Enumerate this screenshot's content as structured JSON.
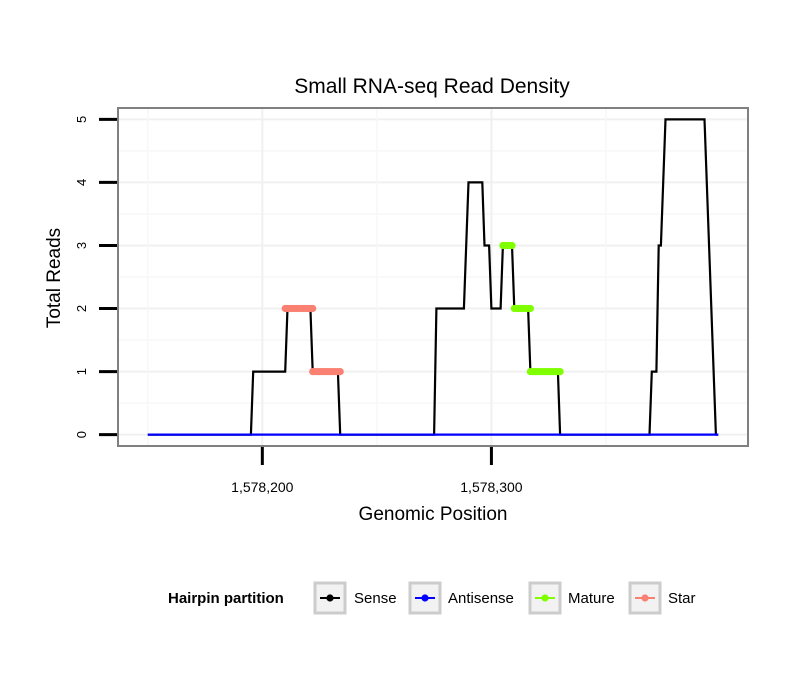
{
  "chart_data": {
    "type": "line",
    "title": "Small RNA-seq Read Density",
    "xlabel": "Genomic Position",
    "ylabel": "Total Reads",
    "xlim": [
      1578137,
      1578412
    ],
    "ylim": [
      -0.18,
      5.18
    ],
    "x_ticks": [
      1578200,
      1578300
    ],
    "x_tick_labels": [
      "1,578,200",
      "1,578,300"
    ],
    "y_ticks": [
      0,
      1,
      2,
      3,
      4,
      5
    ],
    "y_tick_labels": [
      "0",
      "1",
      "2",
      "3",
      "4",
      "5"
    ],
    "grid": true,
    "legend_position": "bottom",
    "legend_title": "Hairpin partition",
    "series": [
      {
        "name": "Sense",
        "color": "#000000",
        "style": "line",
        "points": [
          [
            1578150,
            0
          ],
          [
            1578195,
            0
          ],
          [
            1578196,
            1
          ],
          [
            1578210,
            1
          ],
          [
            1578211,
            2
          ],
          [
            1578221,
            2
          ],
          [
            1578222,
            1
          ],
          [
            1578233,
            1
          ],
          [
            1578234,
            0
          ],
          [
            1578275,
            0
          ],
          [
            1578276,
            2
          ],
          [
            1578288,
            2
          ],
          [
            1578290,
            4
          ],
          [
            1578296,
            4
          ],
          [
            1578297,
            3
          ],
          [
            1578299,
            3
          ],
          [
            1578300,
            2
          ],
          [
            1578304,
            2
          ],
          [
            1578305,
            3
          ],
          [
            1578309,
            3
          ],
          [
            1578310,
            2
          ],
          [
            1578316,
            2
          ],
          [
            1578317,
            1
          ],
          [
            1578329,
            1
          ],
          [
            1578330,
            0
          ],
          [
            1578369,
            0
          ],
          [
            1578370,
            1
          ],
          [
            1578372,
            1
          ],
          [
            1578373,
            3
          ],
          [
            1578374,
            3
          ],
          [
            1578376,
            5
          ],
          [
            1578393,
            5
          ],
          [
            1578398,
            0
          ],
          [
            1578399,
            0
          ]
        ]
      },
      {
        "name": "Antisense",
        "color": "#0000ff",
        "style": "line",
        "points": [
          [
            1578150,
            0
          ],
          [
            1578399,
            0
          ]
        ]
      },
      {
        "name": "Mature",
        "color": "#7fff00",
        "style": "dots",
        "segments": [
          {
            "from": 1578305,
            "to": 1578309,
            "value": 3
          },
          {
            "from": 1578310,
            "to": 1578317,
            "value": 2
          },
          {
            "from": 1578317,
            "to": 1578330,
            "value": 1
          }
        ]
      },
      {
        "name": "Star",
        "color": "#fa8072",
        "style": "dots",
        "segments": [
          {
            "from": 1578210,
            "to": 1578222,
            "value": 2
          },
          {
            "from": 1578222,
            "to": 1578234,
            "value": 1
          }
        ]
      }
    ]
  }
}
